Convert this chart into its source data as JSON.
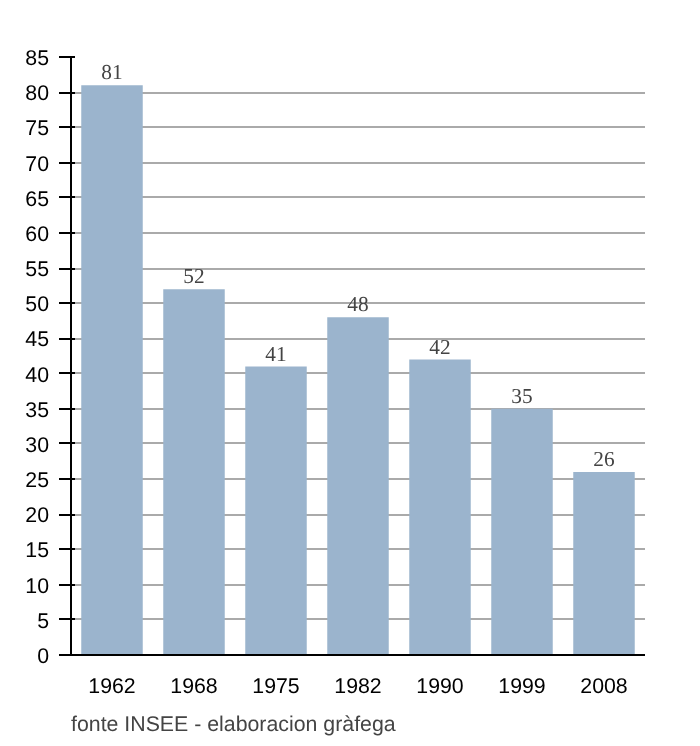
{
  "chart_data": {
    "type": "bar",
    "categories": [
      "1962",
      "1968",
      "1975",
      "1982",
      "1990",
      "1999",
      "2008"
    ],
    "values": [
      81,
      52,
      41,
      48,
      42,
      35,
      26
    ],
    "color": "#9bb4cd",
    "data_labels": true,
    "ylim": [
      0,
      85
    ],
    "yticks": [
      0,
      5,
      10,
      15,
      20,
      25,
      30,
      35,
      40,
      45,
      50,
      55,
      60,
      65,
      70,
      75,
      80,
      85
    ],
    "grid": "y",
    "annotations": [
      "fonte INSEE - elaboracion gràfega"
    ]
  }
}
